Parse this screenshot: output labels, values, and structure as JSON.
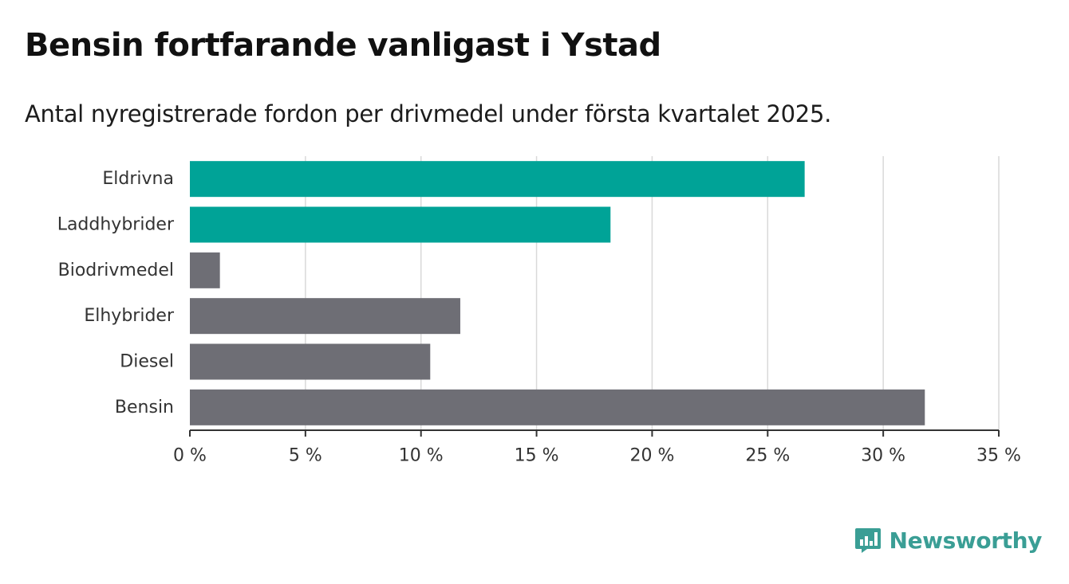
{
  "header": {
    "title": "Bensin fortfarande vanligast i Ystad",
    "subtitle": "Antal nyregistrerade fordon per drivmedel under första kvartalet 2025."
  },
  "brand": {
    "name": "Newsworthy",
    "icon": "bar-chart-speech-bubble-icon",
    "color": "#3a9e95"
  },
  "chart_data": {
    "type": "bar",
    "orientation": "horizontal",
    "categories": [
      "Eldrivna",
      "Laddhybrider",
      "Biodrivmedel",
      "Elhybrider",
      "Diesel",
      "Bensin"
    ],
    "values": [
      26.6,
      18.2,
      1.3,
      11.7,
      10.4,
      31.8
    ],
    "colors": [
      "#00a397",
      "#00a397",
      "#6e6e75",
      "#6e6e75",
      "#6e6e75",
      "#6e6e75"
    ],
    "xlim": [
      0,
      35
    ],
    "xticks": [
      0,
      5,
      10,
      15,
      20,
      25,
      30,
      35
    ],
    "xtick_labels": [
      "0 %",
      "5 %",
      "10 %",
      "15 %",
      "20 %",
      "25 %",
      "30 %",
      "35 %"
    ],
    "grid": "vertical",
    "xlabel": "",
    "ylabel": ""
  }
}
